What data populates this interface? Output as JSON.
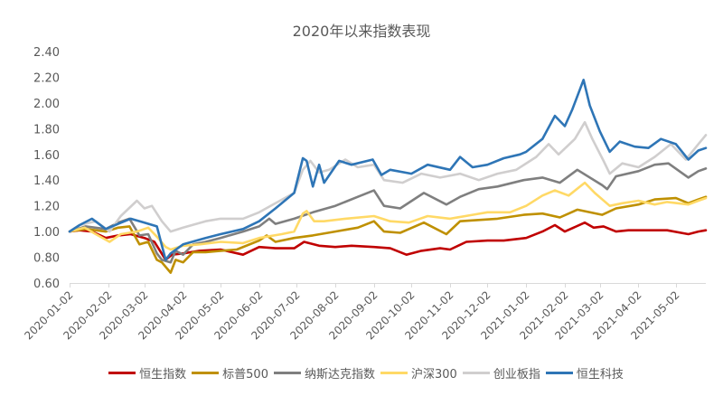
{
  "chart_data": {
    "type": "line",
    "title": "2020年以来指数表现",
    "xlabel": "",
    "ylabel": "",
    "ylim": [
      0.6,
      2.4
    ],
    "xlim": [
      "2020-01-02",
      "2021-05-26"
    ],
    "grid": false,
    "legend_position": "bottom",
    "y_ticks": [
      "0.60",
      "0.80",
      "1.00",
      "1.20",
      "1.40",
      "1.60",
      "1.80",
      "2.00",
      "2.20",
      "2.40"
    ],
    "x_ticks": [
      "2020-01-02",
      "2020-02-02",
      "2020-03-02",
      "2020-04-02",
      "2020-05-02",
      "2020-06-02",
      "2020-07-02",
      "2020-08-02",
      "2020-09-02",
      "2020-10-02",
      "2020-11-02",
      "2020-12-02",
      "2021-01-02",
      "2021-02-02",
      "2021-03-02",
      "2021-04-02",
      "2021-05-02"
    ],
    "series": [
      {
        "name": "恒生指数",
        "color": "#C00000",
        "points": [
          [
            "2020-01-02",
            1.0
          ],
          [
            "2020-01-10",
            1.01
          ],
          [
            "2020-01-20",
            1.0
          ],
          [
            "2020-01-31",
            0.95
          ],
          [
            "2020-02-10",
            0.97
          ],
          [
            "2020-02-20",
            0.98
          ],
          [
            "2020-03-02",
            0.95
          ],
          [
            "2020-03-10",
            0.92
          ],
          [
            "2020-03-19",
            0.78
          ],
          [
            "2020-03-24",
            0.82
          ],
          [
            "2020-04-02",
            0.83
          ],
          [
            "2020-04-15",
            0.85
          ],
          [
            "2020-05-02",
            0.86
          ],
          [
            "2020-05-20",
            0.82
          ],
          [
            "2020-06-02",
            0.88
          ],
          [
            "2020-06-15",
            0.87
          ],
          [
            "2020-06-30",
            0.87
          ],
          [
            "2020-07-08",
            0.92
          ],
          [
            "2020-07-20",
            0.89
          ],
          [
            "2020-08-02",
            0.88
          ],
          [
            "2020-08-15",
            0.89
          ],
          [
            "2020-09-02",
            0.88
          ],
          [
            "2020-09-15",
            0.87
          ],
          [
            "2020-09-28",
            0.82
          ],
          [
            "2020-10-10",
            0.85
          ],
          [
            "2020-10-25",
            0.87
          ],
          [
            "2020-11-02",
            0.86
          ],
          [
            "2020-11-15",
            0.92
          ],
          [
            "2020-12-02",
            0.93
          ],
          [
            "2020-12-15",
            0.93
          ],
          [
            "2021-01-02",
            0.95
          ],
          [
            "2021-01-15",
            1.0
          ],
          [
            "2021-01-25",
            1.05
          ],
          [
            "2021-02-02",
            1.0
          ],
          [
            "2021-02-18",
            1.07
          ],
          [
            "2021-02-25",
            1.03
          ],
          [
            "2021-03-05",
            1.04
          ],
          [
            "2021-03-15",
            1.0
          ],
          [
            "2021-03-25",
            1.01
          ],
          [
            "2021-04-10",
            1.01
          ],
          [
            "2021-04-25",
            1.01
          ],
          [
            "2021-05-12",
            0.98
          ],
          [
            "2021-05-20",
            1.0
          ],
          [
            "2021-05-26",
            1.01
          ]
        ]
      },
      {
        "name": "标普500",
        "color": "#BF9000",
        "points": [
          [
            "2020-01-02",
            1.0
          ],
          [
            "2020-01-15",
            1.02
          ],
          [
            "2020-01-31",
            1.0
          ],
          [
            "2020-02-10",
            1.03
          ],
          [
            "2020-02-19",
            1.04
          ],
          [
            "2020-02-27",
            0.9
          ],
          [
            "2020-03-05",
            0.92
          ],
          [
            "2020-03-12",
            0.78
          ],
          [
            "2020-03-16",
            0.76
          ],
          [
            "2020-03-23",
            0.68
          ],
          [
            "2020-03-27",
            0.78
          ],
          [
            "2020-04-02",
            0.76
          ],
          [
            "2020-04-10",
            0.84
          ],
          [
            "2020-04-20",
            0.84
          ],
          [
            "2020-05-02",
            0.85
          ],
          [
            "2020-05-15",
            0.86
          ],
          [
            "2020-06-02",
            0.93
          ],
          [
            "2020-06-08",
            0.97
          ],
          [
            "2020-06-15",
            0.92
          ],
          [
            "2020-06-30",
            0.95
          ],
          [
            "2020-07-15",
            0.97
          ],
          [
            "2020-08-02",
            1.0
          ],
          [
            "2020-08-20",
            1.03
          ],
          [
            "2020-09-02",
            1.08
          ],
          [
            "2020-09-10",
            1.0
          ],
          [
            "2020-09-23",
            0.99
          ],
          [
            "2020-10-12",
            1.07
          ],
          [
            "2020-10-30",
            0.98
          ],
          [
            "2020-11-10",
            1.08
          ],
          [
            "2020-11-25",
            1.09
          ],
          [
            "2020-12-10",
            1.1
          ],
          [
            "2020-12-31",
            1.13
          ],
          [
            "2021-01-15",
            1.14
          ],
          [
            "2021-01-29",
            1.11
          ],
          [
            "2021-02-12",
            1.17
          ],
          [
            "2021-03-04",
            1.13
          ],
          [
            "2021-03-15",
            1.18
          ],
          [
            "2021-04-02",
            1.21
          ],
          [
            "2021-04-15",
            1.25
          ],
          [
            "2021-05-02",
            1.26
          ],
          [
            "2021-05-12",
            1.22
          ],
          [
            "2021-05-20",
            1.25
          ],
          [
            "2021-05-26",
            1.27
          ]
        ]
      },
      {
        "name": "纳斯达克指数",
        "color": "#7F7F7F",
        "points": [
          [
            "2020-01-02",
            1.0
          ],
          [
            "2020-01-15",
            1.04
          ],
          [
            "2020-01-31",
            1.02
          ],
          [
            "2020-02-10",
            1.07
          ],
          [
            "2020-02-19",
            1.1
          ],
          [
            "2020-02-27",
            0.97
          ],
          [
            "2020-03-05",
            0.98
          ],
          [
            "2020-03-12",
            0.83
          ],
          [
            "2020-03-16",
            0.78
          ],
          [
            "2020-03-23",
            0.76
          ],
          [
            "2020-03-27",
            0.85
          ],
          [
            "2020-04-02",
            0.82
          ],
          [
            "2020-04-10",
            0.9
          ],
          [
            "2020-04-20",
            0.92
          ],
          [
            "2020-05-02",
            0.95
          ],
          [
            "2020-05-20",
            1.0
          ],
          [
            "2020-06-02",
            1.04
          ],
          [
            "2020-06-10",
            1.1
          ],
          [
            "2020-06-15",
            1.06
          ],
          [
            "2020-06-30",
            1.1
          ],
          [
            "2020-07-15",
            1.15
          ],
          [
            "2020-08-02",
            1.2
          ],
          [
            "2020-08-20",
            1.27
          ],
          [
            "2020-09-02",
            1.32
          ],
          [
            "2020-09-10",
            1.2
          ],
          [
            "2020-09-23",
            1.18
          ],
          [
            "2020-10-12",
            1.3
          ],
          [
            "2020-10-30",
            1.21
          ],
          [
            "2020-11-10",
            1.27
          ],
          [
            "2020-11-25",
            1.33
          ],
          [
            "2020-12-10",
            1.35
          ],
          [
            "2020-12-31",
            1.4
          ],
          [
            "2021-01-15",
            1.42
          ],
          [
            "2021-01-29",
            1.38
          ],
          [
            "2021-02-12",
            1.48
          ],
          [
            "2021-03-04",
            1.36
          ],
          [
            "2021-03-08",
            1.33
          ],
          [
            "2021-03-15",
            1.43
          ],
          [
            "2021-04-02",
            1.47
          ],
          [
            "2021-04-15",
            1.52
          ],
          [
            "2021-04-26",
            1.53
          ],
          [
            "2021-05-12",
            1.42
          ],
          [
            "2021-05-20",
            1.47
          ],
          [
            "2021-05-26",
            1.49
          ]
        ]
      },
      {
        "name": "沪深300",
        "color": "#FFD966",
        "points": [
          [
            "2020-01-02",
            1.0
          ],
          [
            "2020-01-14",
            1.03
          ],
          [
            "2020-01-23",
            0.98
          ],
          [
            "2020-02-03",
            0.92
          ],
          [
            "2020-02-12",
            0.98
          ],
          [
            "2020-02-25",
            1.0
          ],
          [
            "2020-03-05",
            1.03
          ],
          [
            "2020-03-12",
            0.96
          ],
          [
            "2020-03-19",
            0.88
          ],
          [
            "2020-03-23",
            0.86
          ],
          [
            "2020-04-02",
            0.89
          ],
          [
            "2020-04-15",
            0.9
          ],
          [
            "2020-05-02",
            0.92
          ],
          [
            "2020-05-20",
            0.91
          ],
          [
            "2020-06-02",
            0.95
          ],
          [
            "2020-06-20",
            0.98
          ],
          [
            "2020-06-30",
            1.0
          ],
          [
            "2020-07-07",
            1.14
          ],
          [
            "2020-07-10",
            1.16
          ],
          [
            "2020-07-16",
            1.08
          ],
          [
            "2020-07-24",
            1.08
          ],
          [
            "2020-08-10",
            1.1
          ],
          [
            "2020-09-02",
            1.12
          ],
          [
            "2020-09-15",
            1.08
          ],
          [
            "2020-09-30",
            1.07
          ],
          [
            "2020-10-15",
            1.12
          ],
          [
            "2020-11-02",
            1.1
          ],
          [
            "2020-11-20",
            1.13
          ],
          [
            "2020-12-02",
            1.15
          ],
          [
            "2020-12-20",
            1.15
          ],
          [
            "2021-01-02",
            1.2
          ],
          [
            "2021-01-15",
            1.28
          ],
          [
            "2021-01-25",
            1.32
          ],
          [
            "2021-02-05",
            1.28
          ],
          [
            "2021-02-18",
            1.38
          ],
          [
            "2021-02-26",
            1.3
          ],
          [
            "2021-03-10",
            1.2
          ],
          [
            "2021-03-20",
            1.22
          ],
          [
            "2021-04-02",
            1.24
          ],
          [
            "2021-04-15",
            1.21
          ],
          [
            "2021-04-25",
            1.23
          ],
          [
            "2021-05-12",
            1.21
          ],
          [
            "2021-05-20",
            1.24
          ],
          [
            "2021-05-26",
            1.26
          ]
        ]
      },
      {
        "name": "创业板指",
        "color": "#D0CECE",
        "points": [
          [
            "2020-01-02",
            1.0
          ],
          [
            "2020-01-10",
            1.05
          ],
          [
            "2020-01-23",
            1.08
          ],
          [
            "2020-02-03",
            1.0
          ],
          [
            "2020-02-12",
            1.12
          ],
          [
            "2020-02-25",
            1.24
          ],
          [
            "2020-03-02",
            1.18
          ],
          [
            "2020-03-08",
            1.2
          ],
          [
            "2020-03-16",
            1.08
          ],
          [
            "2020-03-23",
            1.0
          ],
          [
            "2020-04-02",
            1.03
          ],
          [
            "2020-04-20",
            1.08
          ],
          [
            "2020-05-02",
            1.1
          ],
          [
            "2020-05-20",
            1.1
          ],
          [
            "2020-06-02",
            1.15
          ],
          [
            "2020-06-15",
            1.22
          ],
          [
            "2020-06-30",
            1.3
          ],
          [
            "2020-07-07",
            1.48
          ],
          [
            "2020-07-13",
            1.55
          ],
          [
            "2020-07-20",
            1.46
          ],
          [
            "2020-07-28",
            1.48
          ],
          [
            "2020-08-10",
            1.56
          ],
          [
            "2020-08-20",
            1.5
          ],
          [
            "2020-09-02",
            1.52
          ],
          [
            "2020-09-10",
            1.4
          ],
          [
            "2020-09-25",
            1.38
          ],
          [
            "2020-10-10",
            1.45
          ],
          [
            "2020-10-25",
            1.42
          ],
          [
            "2020-11-10",
            1.45
          ],
          [
            "2020-11-25",
            1.4
          ],
          [
            "2020-12-10",
            1.45
          ],
          [
            "2020-12-25",
            1.48
          ],
          [
            "2021-01-10",
            1.58
          ],
          [
            "2021-01-20",
            1.68
          ],
          [
            "2021-01-28",
            1.6
          ],
          [
            "2021-02-10",
            1.72
          ],
          [
            "2021-02-18",
            1.85
          ],
          [
            "2021-02-24",
            1.72
          ],
          [
            "2021-03-05",
            1.55
          ],
          [
            "2021-03-10",
            1.45
          ],
          [
            "2021-03-20",
            1.53
          ],
          [
            "2021-04-02",
            1.5
          ],
          [
            "2021-04-15",
            1.58
          ],
          [
            "2021-04-28",
            1.68
          ],
          [
            "2021-05-10",
            1.56
          ],
          [
            "2021-05-20",
            1.68
          ],
          [
            "2021-05-26",
            1.75
          ]
        ]
      },
      {
        "name": "恒生科技",
        "color": "#2E75B6",
        "points": [
          [
            "2020-01-02",
            1.0
          ],
          [
            "2020-01-10",
            1.05
          ],
          [
            "2020-01-20",
            1.1
          ],
          [
            "2020-01-31",
            1.02
          ],
          [
            "2020-02-10",
            1.06
          ],
          [
            "2020-02-20",
            1.1
          ],
          [
            "2020-03-02",
            1.07
          ],
          [
            "2020-03-12",
            1.04
          ],
          [
            "2020-03-19",
            0.78
          ],
          [
            "2020-03-23",
            0.83
          ],
          [
            "2020-04-02",
            0.9
          ],
          [
            "2020-04-20",
            0.95
          ],
          [
            "2020-05-02",
            0.98
          ],
          [
            "2020-05-20",
            1.02
          ],
          [
            "2020-06-02",
            1.08
          ],
          [
            "2020-06-15",
            1.18
          ],
          [
            "2020-06-30",
            1.3
          ],
          [
            "2020-07-07",
            1.57
          ],
          [
            "2020-07-10",
            1.55
          ],
          [
            "2020-07-15",
            1.35
          ],
          [
            "2020-07-20",
            1.52
          ],
          [
            "2020-07-24",
            1.38
          ],
          [
            "2020-08-05",
            1.55
          ],
          [
            "2020-08-15",
            1.52
          ],
          [
            "2020-09-01",
            1.56
          ],
          [
            "2020-09-08",
            1.44
          ],
          [
            "2020-09-15",
            1.48
          ],
          [
            "2020-10-02",
            1.45
          ],
          [
            "2020-10-15",
            1.52
          ],
          [
            "2020-11-02",
            1.48
          ],
          [
            "2020-11-10",
            1.58
          ],
          [
            "2020-11-20",
            1.5
          ],
          [
            "2020-12-02",
            1.52
          ],
          [
            "2020-12-15",
            1.57
          ],
          [
            "2020-12-28",
            1.6
          ],
          [
            "2021-01-02",
            1.62
          ],
          [
            "2021-01-15",
            1.72
          ],
          [
            "2021-01-25",
            1.9
          ],
          [
            "2021-02-02",
            1.82
          ],
          [
            "2021-02-08",
            1.95
          ],
          [
            "2021-02-17",
            2.18
          ],
          [
            "2021-02-22",
            1.98
          ],
          [
            "2021-03-02",
            1.78
          ],
          [
            "2021-03-10",
            1.62
          ],
          [
            "2021-03-18",
            1.7
          ],
          [
            "2021-03-30",
            1.66
          ],
          [
            "2021-04-10",
            1.65
          ],
          [
            "2021-04-20",
            1.72
          ],
          [
            "2021-05-02",
            1.68
          ],
          [
            "2021-05-12",
            1.56
          ],
          [
            "2021-05-20",
            1.63
          ],
          [
            "2021-05-26",
            1.65
          ]
        ]
      }
    ]
  }
}
